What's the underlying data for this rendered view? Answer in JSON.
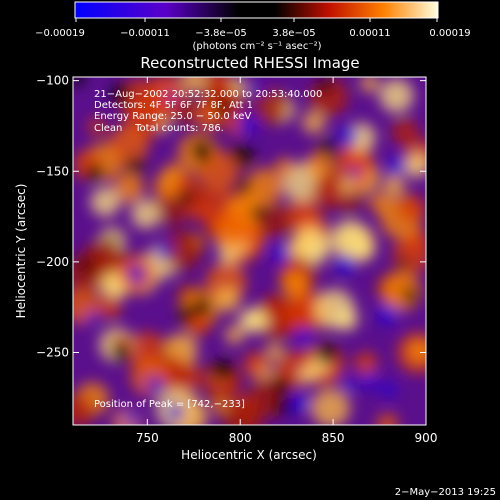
{
  "colorbar": {
    "tick_labels": [
      "−0.00019",
      "−0.00011",
      "−3.8e−05",
      "3.8e−05",
      "0.00011",
      "0.00019"
    ],
    "units_label": "(photons cm⁻² s⁻¹ asec⁻²)",
    "range": [
      -0.00019,
      0.00019
    ]
  },
  "chart_data": {
    "type": "heatmap",
    "title": "Reconstructed RHESSI Image",
    "xlabel": "Heliocentric X (arcsec)",
    "ylabel": "Heliocentric Y (arcsec)",
    "xlim": [
      710,
      900
    ],
    "ylim": [
      -290,
      -98
    ],
    "x_ticks": [
      750,
      800,
      850,
      900
    ],
    "y_ticks": [
      -100,
      -150,
      -200,
      -250
    ],
    "annotations": [
      "21−Aug−2002 20:52:32.000 to 20:53:40.000",
      "Detectors: 4F 5F 6F 7F 8F, Att 1",
      "Energy Range: 25.0 − 50.0 keV",
      "Clean    Total counts: 786."
    ],
    "peak_label": "Position of Peak = [742,−233]",
    "peak": [
      742,
      -233
    ],
    "colors": {
      "negative": "#2a00d8",
      "zero": "#1a0a1a",
      "positive_mid": "#d03000",
      "positive_high": "#ffff80"
    }
  },
  "footer": {
    "timestamp": "2−May−2013 19:25"
  }
}
